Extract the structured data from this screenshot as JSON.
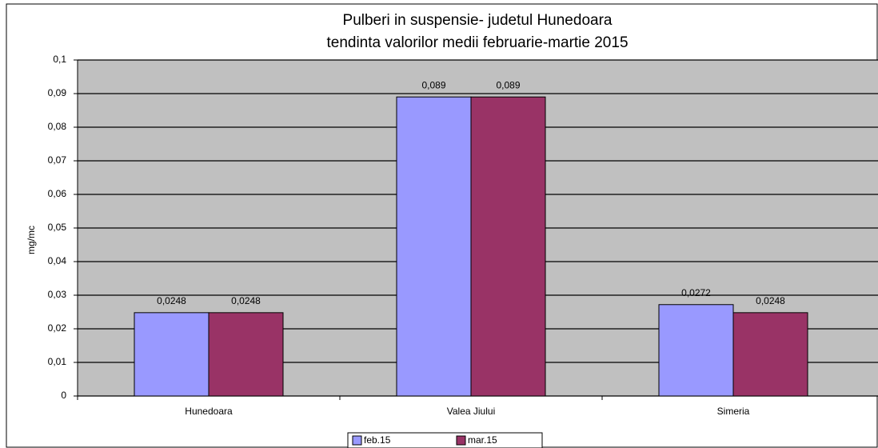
{
  "chart_data": {
    "type": "bar",
    "title": "Pulberi in suspensie- judetul Hunedoara",
    "subtitle": "tendinta valorilor medii februarie-martie 2015",
    "ylabel": "mg/mc",
    "categories": [
      "Hunedoara",
      "Valea Jiului",
      "Simeria"
    ],
    "series": [
      {
        "name": "feb.15",
        "color": "#9999ff",
        "values": [
          0.0248,
          0.089,
          0.0272
        ],
        "value_labels": [
          "0,0248",
          "0,089",
          "0,0272"
        ]
      },
      {
        "name": "mar.15",
        "color": "#993366",
        "values": [
          0.0248,
          0.089,
          0.0248
        ],
        "value_labels": [
          "0,0248",
          "0,089",
          "0,0248"
        ]
      }
    ],
    "ylim": [
      0,
      0.1
    ],
    "yticks": [
      0,
      {
        "value": 0.01,
        "label": "0,01"
      },
      {
        "value": 0.02,
        "label": "0,02"
      },
      {
        "value": 0.03,
        "label": "0,03"
      },
      {
        "value": 0.04,
        "label": "0,04"
      },
      {
        "value": 0.05,
        "label": "0,05"
      },
      {
        "value": 0.06,
        "label": "0,06"
      },
      {
        "value": 0.07,
        "label": "0,07"
      },
      {
        "value": 0.08,
        "label": "0,08"
      },
      {
        "value": 0.09,
        "label": "0,09"
      },
      {
        "value": 0.1,
        "label": "0,1"
      }
    ],
    "grid": true,
    "legend": "bottom"
  }
}
